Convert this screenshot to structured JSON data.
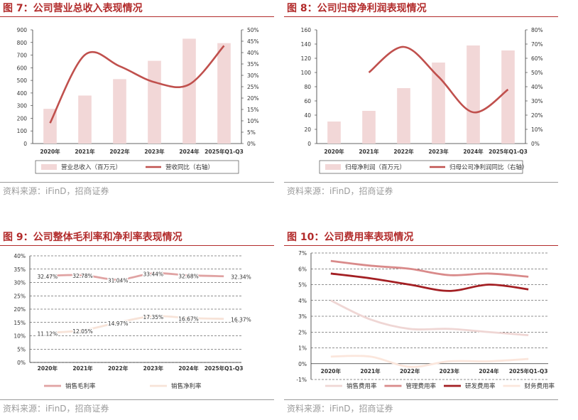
{
  "charts": [
    {
      "title": "图 7：公司营业总收入表现情况",
      "source": "资料来源：iFinD，招商证券"
    },
    {
      "title": "图 8：公司归母净利润表现情况",
      "source": "资料来源：iFinD，招商证券"
    },
    {
      "title": "图 9：公司整体毛利率和净利率表现情况",
      "source": "资料来源：iFinD，招商证券"
    },
    {
      "title": "图 10：公司费用率表现情况",
      "source": "资料来源：iFinD，招商证券"
    }
  ],
  "chart_data": [
    {
      "type": "bar",
      "categories": [
        "2020年",
        "2021年",
        "2022年",
        "2023年",
        "2024年",
        "2025年Q1-Q3"
      ],
      "series": [
        {
          "name": "营业总收入（百万元）",
          "kind": "bar",
          "axis": "left",
          "values": [
            275,
            380,
            510,
            655,
            830,
            795
          ]
        },
        {
          "name": "营收同比（右轴）",
          "kind": "line",
          "axis": "right",
          "values": [
            9,
            39,
            34,
            27,
            26,
            43
          ]
        }
      ],
      "yticks_left": [
        "0",
        "100",
        "200",
        "300",
        "400",
        "500",
        "600",
        "700",
        "800",
        "900"
      ],
      "yticks_right": [
        "0%",
        "5%",
        "10%",
        "15%",
        "20%",
        "25%",
        "30%",
        "35%",
        "40%",
        "45%",
        "50%"
      ],
      "ylim": [
        0,
        900
      ],
      "ylim_right": [
        0,
        50
      ],
      "legend": "bottom",
      "grid": false,
      "colors": {
        "bar": "#f2d7d7",
        "line": "#c0504d"
      }
    },
    {
      "type": "bar",
      "categories": [
        "2020年",
        "2021年",
        "2022年",
        "2023年",
        "2024年",
        "2025年Q1-Q3"
      ],
      "series": [
        {
          "name": "归母净利润（百万元）",
          "kind": "bar",
          "axis": "left",
          "values": [
            31,
            46,
            78,
            114,
            138,
            131
          ]
        },
        {
          "name": "归母公司净利润同比（右轴）",
          "kind": "line",
          "axis": "right",
          "values": [
            null,
            50,
            68,
            47,
            22,
            38
          ]
        }
      ],
      "yticks_left": [
        "0",
        "20",
        "40",
        "60",
        "80",
        "100",
        "120",
        "140",
        "160"
      ],
      "yticks_right": [
        "0%",
        "10%",
        "20%",
        "30%",
        "40%",
        "50%",
        "60%",
        "70%",
        "80%"
      ],
      "ylim": [
        0,
        160
      ],
      "ylim_right": [
        0,
        80
      ],
      "legend": "bottom",
      "grid": false,
      "colors": {
        "bar": "#f2d7d7",
        "line": "#c0504d"
      }
    },
    {
      "type": "line",
      "categories": [
        "2020年",
        "2021年",
        "2022年",
        "2023年",
        "2024年",
        "2025年Q1-Q3"
      ],
      "series": [
        {
          "name": "销售毛利率",
          "values": [
            32.47,
            32.78,
            31.04,
            33.44,
            32.68,
            32.34
          ],
          "labels": [
            "32.47%",
            "32.78%",
            "31.04%",
            "33.44%",
            "32.68%",
            "32.34%"
          ]
        },
        {
          "name": "销售净利率",
          "values": [
            11.12,
            12.05,
            14.97,
            17.35,
            16.67,
            16.37
          ],
          "labels": [
            "11.12%",
            "12.05%",
            "14.97%",
            "17.35%",
            "16.67%",
            "16.37%"
          ]
        }
      ],
      "yticks": [
        "0%",
        "5%",
        "10%",
        "15%",
        "20%",
        "25%",
        "30%",
        "35%",
        "40%"
      ],
      "ylim": [
        0,
        40
      ],
      "legend": "bottom",
      "grid": true,
      "colors": {
        "销售毛利率": "#e0a3a3",
        "销售净利率": "#f7e3d8"
      }
    },
    {
      "type": "line",
      "categories": [
        "2020年",
        "2021年",
        "2022年",
        "2023年",
        "2024年",
        "2025年Q1-Q3"
      ],
      "series": [
        {
          "name": "销售费用率",
          "values": [
            4.0,
            2.8,
            2.2,
            2.2,
            2.0,
            1.8
          ]
        },
        {
          "name": "管理费用率",
          "values": [
            6.5,
            6.2,
            6.0,
            5.6,
            5.7,
            5.5
          ]
        },
        {
          "name": "研发费用率",
          "values": [
            5.7,
            5.4,
            5.0,
            4.6,
            5.0,
            4.7
          ]
        },
        {
          "name": "财务费用率",
          "values": [
            0.45,
            0.45,
            -0.2,
            0.15,
            0.15,
            0.3
          ]
        }
      ],
      "yticks": [
        "-1%",
        "0%",
        "1%",
        "2%",
        "3%",
        "4%",
        "5%",
        "6%",
        "7%"
      ],
      "ylim": [
        -1,
        7
      ],
      "legend": "bottom",
      "grid": true,
      "colors": {
        "销售费用率": "#efd6d4",
        "管理费用率": "#d98a8a",
        "研发费用率": "#a31f23",
        "财务费用率": "#fbe6dc"
      }
    }
  ]
}
